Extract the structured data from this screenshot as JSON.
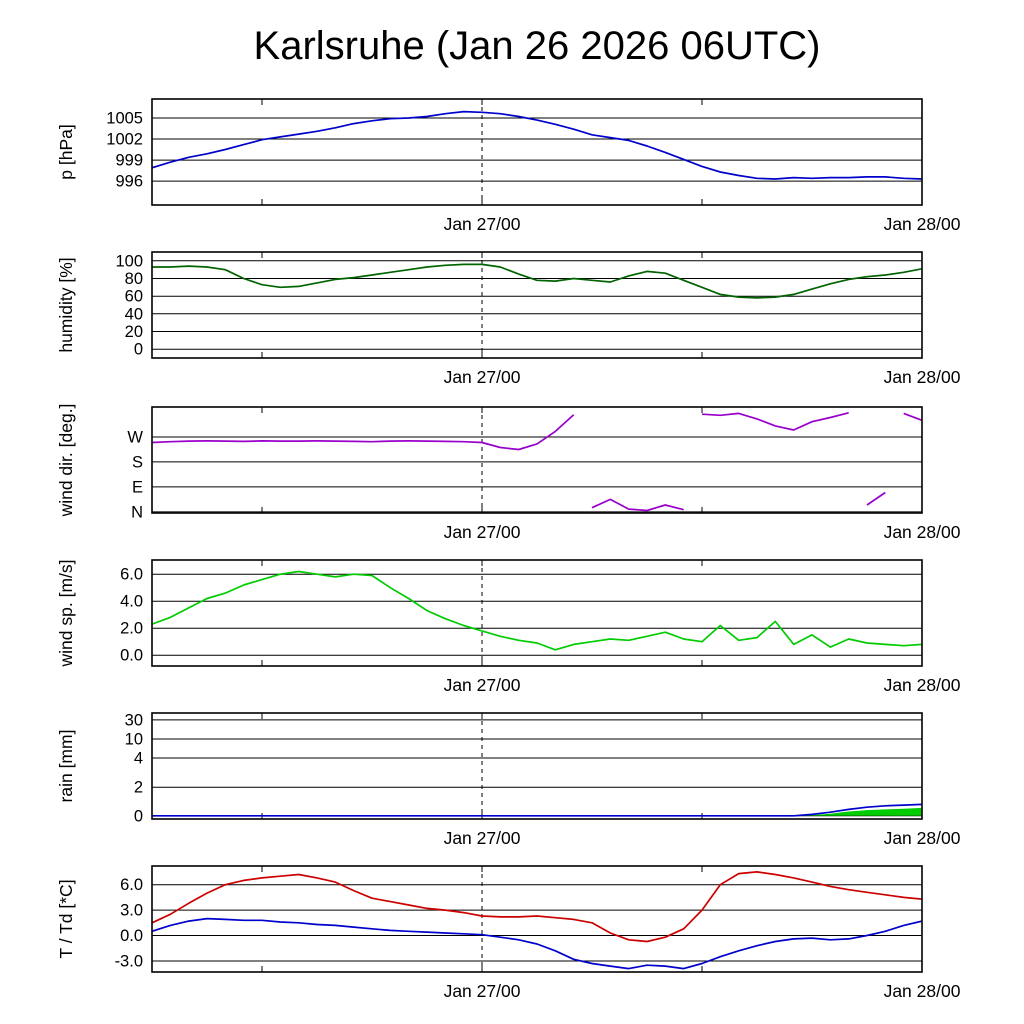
{
  "title": "Karlsruhe (Jan 26 2026 06UTC)",
  "chart_data": {
    "type": "line",
    "title": "Karlsruhe (Jan 26 2026 06UTC)",
    "x_unit": "hours, hourly samples starting Jan 26 2026 06UTC",
    "xlim": [
      0,
      42
    ],
    "x_major_ticks": [
      {
        "t": 18,
        "label": "Jan 27/00"
      },
      {
        "t": 42,
        "label": "Jan 28/00"
      }
    ],
    "x_minor_ticks": [
      6,
      30
    ],
    "dashed_t": 18,
    "grid": true,
    "panels": [
      {
        "id": "pressure",
        "ylabel": "p [hPa]",
        "ylim": [
          992.6,
          1007.7
        ],
        "yticks": [
          {
            "v": 996,
            "label": "996"
          },
          {
            "v": 999,
            "label": "999"
          },
          {
            "v": 1002,
            "label": "1002"
          },
          {
            "v": 1005,
            "label": "1005"
          }
        ],
        "series": [
          {
            "name": "pressure",
            "color": "#0000cc",
            "values": [
              997.9,
              998.7,
              999.4,
              999.9,
              1000.5,
              1001.2,
              1001.9,
              1002.3,
              1002.7,
              1003.1,
              1003.6,
              1004.2,
              1004.6,
              1004.9,
              1005.0,
              1005.2,
              1005.6,
              1005.9,
              1005.8,
              1005.6,
              1005.2,
              1004.7,
              1004.1,
              1003.4,
              1002.6,
              1002.2,
              1001.8,
              1001.0,
              1000.1,
              999.1,
              998.1,
              997.3,
              996.8,
              996.4,
              996.3,
              996.5,
              996.4,
              996.5,
              996.5,
              996.6,
              996.6,
              996.4,
              996.3
            ]
          }
        ]
      },
      {
        "id": "humidity",
        "ylabel": "humidity [%]",
        "ylim": [
          -10,
          110
        ],
        "yticks": [
          {
            "v": 0,
            "label": "0"
          },
          {
            "v": 20,
            "label": "20"
          },
          {
            "v": 40,
            "label": "40"
          },
          {
            "v": 60,
            "label": "60"
          },
          {
            "v": 80,
            "label": "80"
          },
          {
            "v": 100,
            "label": "100"
          }
        ],
        "series": [
          {
            "name": "humidity",
            "color": "#006400",
            "values": [
              93,
              93,
              94,
              93,
              90,
              80,
              73,
              70,
              71,
              75,
              79,
              81,
              84,
              87,
              90,
              93,
              95,
              96,
              96,
              93,
              85,
              78,
              77,
              80,
              78,
              76,
              83,
              88,
              86,
              78,
              70,
              62,
              59,
              58,
              59,
              62,
              68,
              74,
              79,
              82,
              84,
              87,
              91
            ]
          }
        ]
      },
      {
        "id": "wind-direction",
        "ylabel": "wind dir. [deg.]",
        "ylim": [
          -4,
          378
        ],
        "wrap": 360,
        "yticks": [
          {
            "v": 0,
            "label": "N"
          },
          {
            "v": 90,
            "label": "E"
          },
          {
            "v": 180,
            "label": "S"
          },
          {
            "v": 270,
            "label": "W"
          }
        ],
        "series": [
          {
            "name": "wind-direction",
            "color": "#9900cc",
            "values": [
              250,
              253,
              255,
              256,
              255,
              254,
              256,
              255,
              255,
              256,
              255,
              254,
              253,
              255,
              256,
              255,
              254,
              253,
              250,
              232,
              225,
              245,
              290,
              350,
              15,
              45,
              10,
              5,
              25,
              8,
              352,
              348,
              355,
              335,
              310,
              295,
              325,
              340,
              357,
              25,
              70,
              355,
              330
            ]
          }
        ]
      },
      {
        "id": "wind-speed",
        "ylabel": "wind sp. [m/s]",
        "ylim": [
          -0.8,
          7.05
        ],
        "yticks": [
          {
            "v": 0,
            "label": "0.0"
          },
          {
            "v": 2,
            "label": "2.0"
          },
          {
            "v": 4,
            "label": "4.0"
          },
          {
            "v": 6,
            "label": "6.0"
          }
        ],
        "series": [
          {
            "name": "wind-speed",
            "color": "#00cc00",
            "values": [
              2.3,
              2.8,
              3.5,
              4.2,
              4.6,
              5.2,
              5.6,
              6.0,
              6.2,
              6.0,
              5.8,
              6.0,
              5.9,
              5.0,
              4.2,
              3.3,
              2.7,
              2.2,
              1.8,
              1.4,
              1.1,
              0.9,
              0.4,
              0.8,
              1.0,
              1.2,
              1.1,
              1.4,
              1.7,
              1.2,
              1.0,
              2.2,
              1.1,
              1.3,
              2.5,
              0.8,
              1.5,
              0.6,
              1.2,
              0.9,
              0.8,
              0.7,
              0.8
            ]
          }
        ]
      },
      {
        "id": "rain",
        "ylabel": "rain [mm]",
        "scale_points": [
          [
            0,
            0.03
          ],
          [
            2,
            0.3
          ],
          [
            4,
            0.575
          ],
          [
            10,
            0.755
          ],
          [
            30,
            0.935
          ]
        ],
        "yticks": [
          {
            "v": 0,
            "label": "0"
          },
          {
            "v": 2,
            "label": "2"
          },
          {
            "v": 4,
            "label": "4"
          },
          {
            "v": 10,
            "label": "10"
          },
          {
            "v": 30,
            "label": "30"
          }
        ],
        "series": [
          {
            "name": "rain-convective-fill",
            "color": "#00cc00",
            "fill": true,
            "values": [
              0,
              0,
              0,
              0,
              0,
              0,
              0,
              0,
              0,
              0,
              0,
              0,
              0,
              0,
              0,
              0,
              0,
              0,
              0,
              0,
              0,
              0,
              0,
              0,
              0,
              0,
              0,
              0,
              0,
              0,
              0,
              0,
              0,
              0,
              0,
              0,
              0.05,
              0.15,
              0.3,
              0.4,
              0.45,
              0.5,
              0.55
            ]
          },
          {
            "name": "rain-total",
            "color": "#0000cc",
            "values": [
              0,
              0,
              0,
              0,
              0,
              0,
              0,
              0,
              0,
              0,
              0,
              0,
              0,
              0,
              0,
              0,
              0,
              0,
              0,
              0,
              0,
              0,
              0,
              0,
              0,
              0,
              0,
              0,
              0,
              0,
              0,
              0,
              0,
              0,
              0,
              0,
              0.1,
              0.25,
              0.45,
              0.6,
              0.7,
              0.75,
              0.8
            ]
          }
        ]
      },
      {
        "id": "temperature",
        "ylabel": "T / Td [*C]",
        "ylim": [
          -4.3,
          8.2
        ],
        "yticks": [
          {
            "v": -3,
            "label": "-3.0"
          },
          {
            "v": 0,
            "label": "0.0"
          },
          {
            "v": 3,
            "label": "3.0"
          },
          {
            "v": 6,
            "label": "6.0"
          }
        ],
        "series": [
          {
            "name": "temperature",
            "color": "#cc0000",
            "values": [
              1.5,
              2.5,
              3.8,
              5.0,
              6.0,
              6.5,
              6.8,
              7.0,
              7.2,
              6.8,
              6.3,
              5.3,
              4.4,
              4.0,
              3.6,
              3.2,
              3.0,
              2.7,
              2.3,
              2.2,
              2.2,
              2.3,
              2.1,
              1.9,
              1.5,
              0.3,
              -0.5,
              -0.7,
              -0.2,
              0.8,
              3.0,
              6.0,
              7.3,
              7.5,
              7.2,
              6.8,
              6.3,
              5.8,
              5.4,
              5.1,
              4.8,
              4.5,
              4.3
            ]
          },
          {
            "name": "dewpoint",
            "color": "#0000cc",
            "values": [
              0.5,
              1.2,
              1.7,
              2.0,
              1.9,
              1.8,
              1.8,
              1.6,
              1.5,
              1.3,
              1.2,
              1.0,
              0.8,
              0.6,
              0.5,
              0.4,
              0.3,
              0.2,
              0.1,
              -0.2,
              -0.5,
              -1.0,
              -1.8,
              -2.8,
              -3.3,
              -3.6,
              -3.9,
              -3.5,
              -3.6,
              -3.9,
              -3.3,
              -2.5,
              -1.8,
              -1.2,
              -0.7,
              -0.4,
              -0.3,
              -0.5,
              -0.4,
              0.0,
              0.5,
              1.2,
              1.7
            ]
          }
        ]
      }
    ]
  }
}
